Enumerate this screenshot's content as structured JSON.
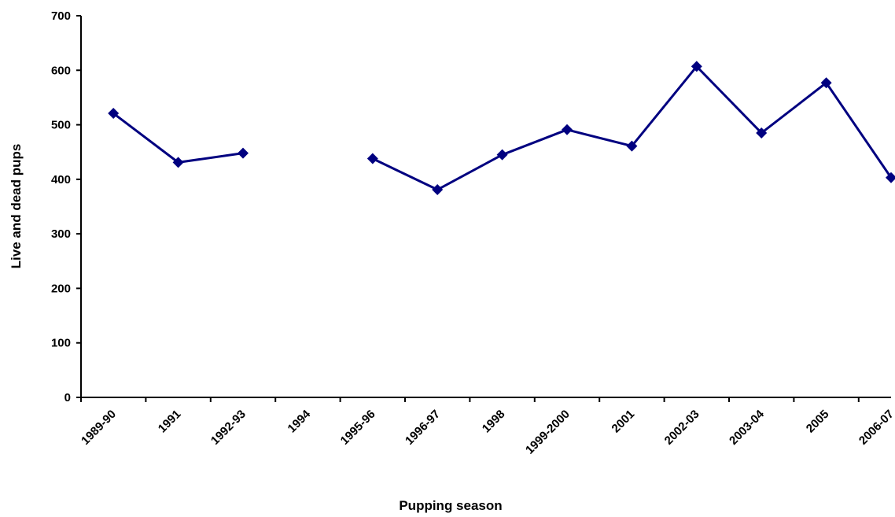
{
  "chart_data": {
    "type": "line",
    "title": "",
    "xlabel": "Pupping season",
    "ylabel": "Live and dead pups",
    "ylim": [
      0,
      700
    ],
    "yticks": [
      0,
      100,
      200,
      300,
      400,
      500,
      600,
      700
    ],
    "categories": [
      "1989-90",
      "1991",
      "1992-93",
      "1994",
      "1995-96",
      "1996-97",
      "1998",
      "1999-2000",
      "2001",
      "2002-03",
      "2003-04",
      "2005",
      "2006-07"
    ],
    "series": [
      {
        "values": [
          521,
          431,
          448,
          null,
          438,
          381,
          445,
          491,
          461,
          607,
          485,
          577,
          403
        ],
        "color": "#000080",
        "marker": "diamond"
      }
    ],
    "grid": false,
    "legend": "none"
  }
}
